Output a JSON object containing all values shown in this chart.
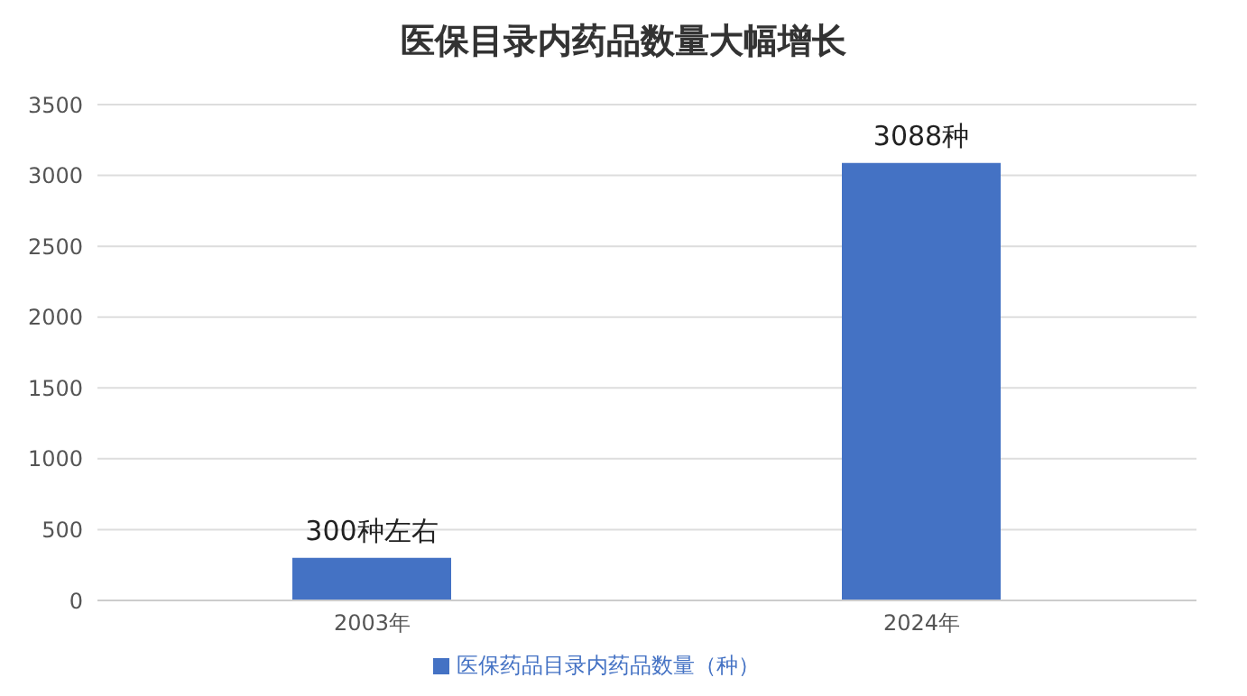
{
  "chart_data": {
    "type": "bar",
    "title": "医保目录内药品数量大幅增长",
    "categories": [
      "2003年",
      "2024年"
    ],
    "series": [
      {
        "name": "医保药品目录内药品数量（种）",
        "color": "#4472c4",
        "values": [
          300,
          3088
        ],
        "value_labels": [
          "300种左右",
          "3088种"
        ]
      }
    ],
    "ylim": [
      0,
      3500
    ],
    "yticks": [
      0,
      500,
      1000,
      1500,
      2000,
      2500,
      3000,
      3500
    ],
    "grid": "y",
    "legend": "bottom"
  }
}
